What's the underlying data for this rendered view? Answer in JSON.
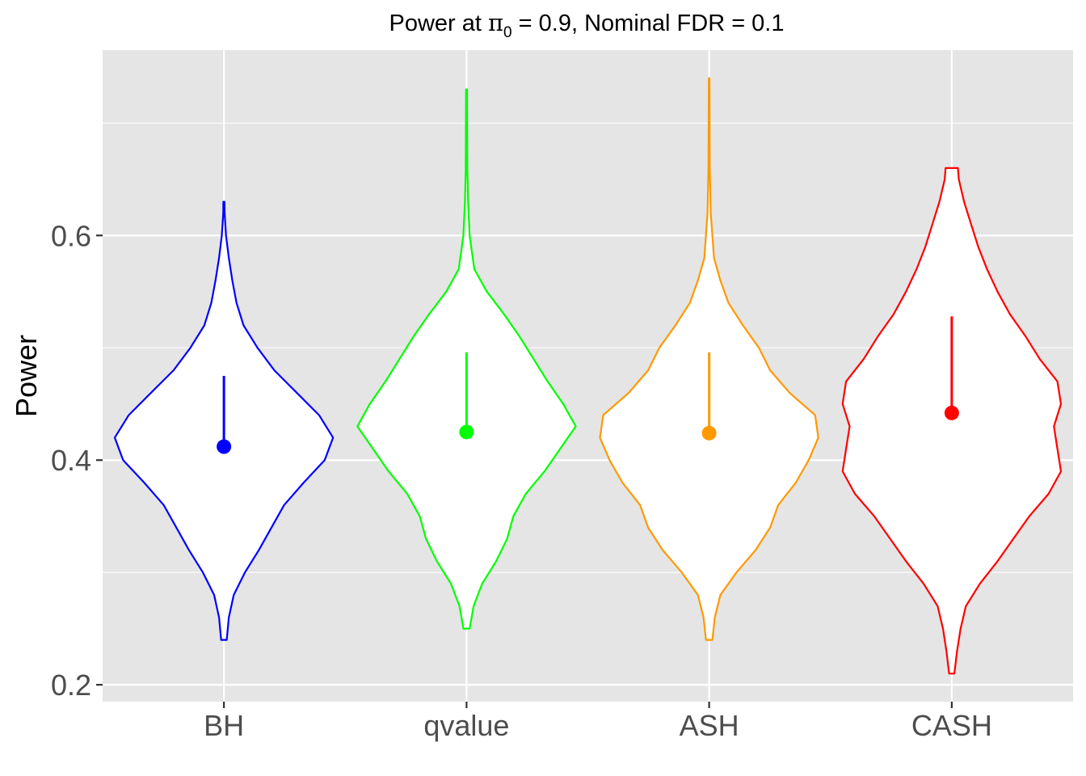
{
  "chart_data": {
    "type": "violin",
    "title_prefix": "Power at ",
    "title_symbol": "π",
    "title_subscript": "0",
    "title_suffix": " = 0.9, Nominal FDR = 0.1",
    "xlabel": "",
    "ylabel": "Power",
    "ylim": [
      0.185,
      0.765
    ],
    "yticks": [
      0.2,
      0.4,
      0.6
    ],
    "ytick_labels": [
      "0.2",
      "0.4",
      "0.6"
    ],
    "minor_yticks": [
      0.3,
      0.5,
      0.7
    ],
    "grid": true,
    "legend": "none",
    "categories": [
      "BH",
      "qvalue",
      "ASH",
      "CASH"
    ],
    "series": [
      {
        "colors": "#0000ff",
        "mean": 0.412,
        "upper": 0.475,
        "density": [
          [
            0.24,
            0.02
          ],
          [
            0.26,
            0.035
          ],
          [
            0.28,
            0.07
          ],
          [
            0.3,
            0.15
          ],
          [
            0.32,
            0.25
          ],
          [
            0.34,
            0.34
          ],
          [
            0.36,
            0.43
          ],
          [
            0.38,
            0.57
          ],
          [
            0.4,
            0.72
          ],
          [
            0.42,
            0.78
          ],
          [
            0.44,
            0.68
          ],
          [
            0.46,
            0.52
          ],
          [
            0.48,
            0.36
          ],
          [
            0.5,
            0.24
          ],
          [
            0.52,
            0.14
          ],
          [
            0.54,
            0.09
          ],
          [
            0.56,
            0.06
          ],
          [
            0.58,
            0.035
          ],
          [
            0.6,
            0.015
          ],
          [
            0.62,
            0.005
          ],
          [
            0.63,
            0.004
          ]
        ]
      },
      {
        "colors": "#00ff00",
        "mean": 0.425,
        "upper": 0.496,
        "density": [
          [
            0.25,
            0.02
          ],
          [
            0.27,
            0.045
          ],
          [
            0.29,
            0.1
          ],
          [
            0.31,
            0.19
          ],
          [
            0.33,
            0.26
          ],
          [
            0.35,
            0.3
          ],
          [
            0.37,
            0.38
          ],
          [
            0.39,
            0.5
          ],
          [
            0.41,
            0.6
          ],
          [
            0.43,
            0.7
          ],
          [
            0.45,
            0.62
          ],
          [
            0.47,
            0.52
          ],
          [
            0.49,
            0.43
          ],
          [
            0.51,
            0.34
          ],
          [
            0.53,
            0.24
          ],
          [
            0.55,
            0.13
          ],
          [
            0.57,
            0.05
          ],
          [
            0.6,
            0.02
          ],
          [
            0.63,
            0.01
          ],
          [
            0.66,
            0.005
          ],
          [
            0.7,
            0.004
          ],
          [
            0.73,
            0.003
          ]
        ]
      },
      {
        "colors": "#ff9900",
        "mean": 0.424,
        "upper": 0.496,
        "density": [
          [
            0.24,
            0.02
          ],
          [
            0.26,
            0.035
          ],
          [
            0.28,
            0.07
          ],
          [
            0.3,
            0.17
          ],
          [
            0.32,
            0.29
          ],
          [
            0.34,
            0.38
          ],
          [
            0.36,
            0.43
          ],
          [
            0.38,
            0.54
          ],
          [
            0.4,
            0.62
          ],
          [
            0.42,
            0.68
          ],
          [
            0.44,
            0.66
          ],
          [
            0.46,
            0.5
          ],
          [
            0.48,
            0.38
          ],
          [
            0.5,
            0.31
          ],
          [
            0.52,
            0.21
          ],
          [
            0.54,
            0.12
          ],
          [
            0.56,
            0.07
          ],
          [
            0.58,
            0.03
          ],
          [
            0.62,
            0.01
          ],
          [
            0.66,
            0.004
          ],
          [
            0.7,
            0.003
          ],
          [
            0.74,
            0.002
          ]
        ]
      },
      {
        "colors": "#ff0000",
        "mean": 0.442,
        "upper": 0.528,
        "density": [
          [
            0.21,
            0.015
          ],
          [
            0.23,
            0.03
          ],
          [
            0.25,
            0.05
          ],
          [
            0.27,
            0.08
          ],
          [
            0.29,
            0.16
          ],
          [
            0.31,
            0.26
          ],
          [
            0.33,
            0.35
          ],
          [
            0.35,
            0.44
          ],
          [
            0.37,
            0.55
          ],
          [
            0.39,
            0.62
          ],
          [
            0.41,
            0.6
          ],
          [
            0.43,
            0.58
          ],
          [
            0.45,
            0.62
          ],
          [
            0.47,
            0.6
          ],
          [
            0.49,
            0.5
          ],
          [
            0.51,
            0.42
          ],
          [
            0.53,
            0.33
          ],
          [
            0.55,
            0.26
          ],
          [
            0.57,
            0.2
          ],
          [
            0.59,
            0.15
          ],
          [
            0.61,
            0.11
          ],
          [
            0.63,
            0.07
          ],
          [
            0.65,
            0.04
          ],
          [
            0.66,
            0.035
          ]
        ]
      }
    ]
  }
}
